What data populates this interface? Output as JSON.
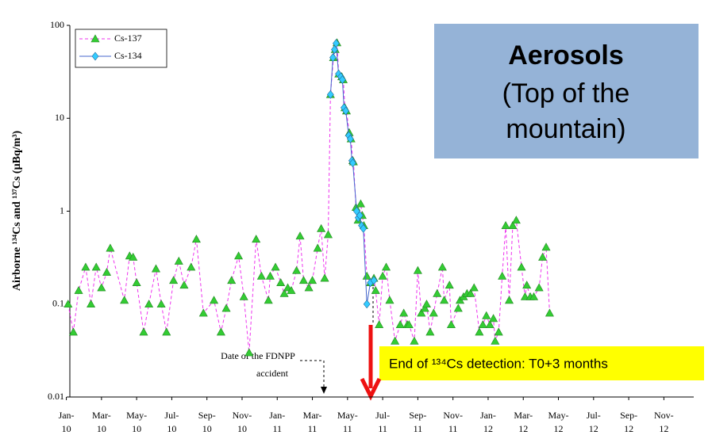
{
  "chart_data": {
    "type": "line",
    "y_label": "Airborne ¹³⁴Cs and ¹³⁷Cs  (µBq/m³)",
    "yscale": "log",
    "ylim": [
      0.01,
      100
    ],
    "yticks": [
      0.01,
      0.1,
      1,
      10,
      100
    ],
    "xlim": [
      0.2,
      35.7
    ],
    "xticks": [
      {
        "value": 0,
        "label": "Jan-10"
      },
      {
        "value": 2,
        "label": "Mar-10"
      },
      {
        "value": 4,
        "label": "May-10"
      },
      {
        "value": 6,
        "label": "Jul-10"
      },
      {
        "value": 8,
        "label": "Sep-10"
      },
      {
        "value": 10,
        "label": "Nov-10"
      },
      {
        "value": 12,
        "label": "Jan-11"
      },
      {
        "value": 14,
        "label": "Mar-11"
      },
      {
        "value": 16,
        "label": "May-11"
      },
      {
        "value": 18,
        "label": "Jul-11"
      },
      {
        "value": 20,
        "label": "Sep-11"
      },
      {
        "value": 22,
        "label": "Nov-11"
      },
      {
        "value": 24,
        "label": "Jan-12"
      },
      {
        "value": 26,
        "label": "Mar-12"
      },
      {
        "value": 28,
        "label": "May-12"
      },
      {
        "value": 30,
        "label": "Jul-12"
      },
      {
        "value": 32,
        "label": "Sep-12"
      },
      {
        "value": 34,
        "label": "Nov-12"
      }
    ],
    "legend": "upper left",
    "series": [
      {
        "name": "Cs-137",
        "color": "#ee33ee",
        "marker_color": "#33cc33",
        "marker": "triangle",
        "dash": true,
        "x": [
          0.1,
          0.4,
          0.7,
          1.1,
          1.4,
          1.7,
          2.0,
          2.3,
          2.5,
          3.3,
          3.6,
          3.8,
          4.0,
          4.4,
          4.7,
          5.1,
          5.4,
          5.7,
          6.1,
          6.4,
          6.7,
          7.1,
          7.4,
          7.8,
          8.4,
          8.8,
          9.1,
          9.4,
          9.8,
          10.1,
          10.4,
          10.8,
          11.1,
          11.5,
          11.6,
          11.9,
          12.2,
          12.4,
          12.6,
          12.8,
          13.1,
          13.3,
          13.5,
          13.8,
          14.0,
          14.3,
          14.5,
          14.7,
          14.9,
          15.03,
          15.2,
          15.3,
          15.4,
          15.5,
          15.67,
          15.76,
          15.85,
          15.94,
          16.1,
          16.2,
          16.3,
          16.34,
          16.48,
          16.6,
          16.75,
          16.84,
          16.93,
          17.1,
          17.3,
          17.5,
          17.6,
          17.8,
          18.0,
          18.2,
          18.4,
          18.7,
          19.0,
          19.2,
          19.4,
          19.5,
          19.8,
          20.0,
          20.2,
          20.4,
          20.5,
          20.7,
          20.9,
          21.1,
          21.4,
          21.5,
          21.8,
          21.9,
          22.3,
          22.4,
          22.6,
          22.8,
          23.0,
          23.2,
          23.5,
          23.7,
          23.9,
          24.1,
          24.3,
          24.4,
          24.6,
          24.8,
          25.0,
          25.2,
          25.4,
          25.6,
          25.9,
          26.1,
          26.2,
          26.4,
          26.6,
          26.9,
          27.1,
          27.3,
          27.5
        ],
        "values": [
          0.1,
          0.05,
          0.14,
          0.25,
          0.1,
          0.25,
          0.15,
          0.22,
          0.4,
          0.11,
          0.33,
          0.32,
          0.17,
          0.05,
          0.1,
          0.24,
          0.1,
          0.05,
          0.18,
          0.29,
          0.16,
          0.25,
          0.5,
          0.08,
          0.11,
          0.05,
          0.09,
          0.18,
          0.33,
          0.12,
          0.03,
          0.5,
          0.2,
          0.11,
          0.2,
          0.25,
          0.17,
          0.13,
          0.15,
          0.14,
          0.23,
          0.54,
          0.18,
          0.15,
          0.18,
          0.4,
          0.65,
          0.19,
          0.56,
          18,
          45,
          55,
          65,
          30,
          28,
          26,
          13,
          12,
          7,
          6,
          3.5,
          3.4,
          1.1,
          0.8,
          1.2,
          0.9,
          0.7,
          0.2,
          0.17,
          0.19,
          0.14,
          0.06,
          0.2,
          0.25,
          0.11,
          0.04,
          0.06,
          0.08,
          0.06,
          0.06,
          0.04,
          0.23,
          0.08,
          0.09,
          0.1,
          0.05,
          0.08,
          0.13,
          0.25,
          0.11,
          0.16,
          0.06,
          0.09,
          0.11,
          0.12,
          0.13,
          0.13,
          0.15,
          0.05,
          0.06,
          0.075,
          0.06,
          0.07,
          0.04,
          0.05,
          0.2,
          0.7,
          0.11,
          0.7,
          0.8,
          0.25,
          0.12,
          0.16,
          0.12,
          0.12,
          0.15,
          0.32,
          0.41,
          0.08
        ]
      },
      {
        "name": "Cs-134",
        "color": "#4466cc",
        "marker_color": "#33ccff",
        "marker": "diamond",
        "dash": false,
        "x": [
          15.03,
          15.17,
          15.26,
          15.35,
          15.49,
          15.62,
          15.71,
          15.8,
          15.9,
          16.07,
          16.16,
          16.25,
          16.3,
          16.52,
          16.61,
          16.7,
          16.8,
          16.9,
          17.1,
          17.3,
          17.5
        ],
        "values": [
          18,
          45,
          55,
          64,
          30,
          28,
          26,
          13,
          12,
          6.5,
          6,
          3.5,
          3.3,
          1,
          0.85,
          0.9,
          0.7,
          0.65,
          0.1,
          0.17,
          0.18
        ]
      }
    ],
    "annotations": {
      "accident": [
        "Date of the FDNPP",
        "accident"
      ],
      "end_detection": "End of ¹³⁴Cs detection: T0+3 months",
      "box": [
        "Aerosols",
        "(Top of the",
        "mountain)"
      ]
    }
  }
}
